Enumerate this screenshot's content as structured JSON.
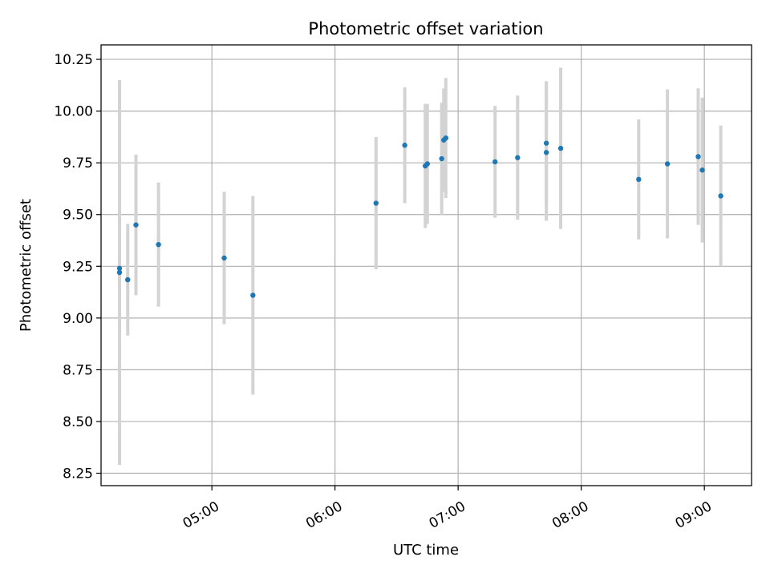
{
  "chart_data": {
    "type": "scatter",
    "title": "Photometric offset variation",
    "xlabel": "UTC time",
    "ylabel": "Photometric offset",
    "x_unit": "UTC time (HH:MM)",
    "xlim": [
      "04:06",
      "09:23"
    ],
    "ylim": [
      8.19,
      10.32
    ],
    "x_ticks": [
      "05:00",
      "06:00",
      "07:00",
      "08:00",
      "09:00"
    ],
    "y_ticks": [
      8.25,
      8.5,
      8.75,
      9.0,
      9.25,
      9.5,
      9.75,
      10.0,
      10.25
    ],
    "y_tick_labels": [
      "8.25",
      "8.50",
      "8.75",
      "9.00",
      "9.25",
      "9.50",
      "9.75",
      "10.00",
      "10.25"
    ],
    "grid": true,
    "colors": {
      "points": "#1f77b4",
      "errorbars": "#d3d3d3",
      "grid": "#b0b0b0"
    },
    "points": [
      {
        "t": "04:15",
        "y": 9.22,
        "err": 0.93
      },
      {
        "t": "04:15",
        "y": 9.24,
        "err": 0.8
      },
      {
        "t": "04:19",
        "y": 9.185,
        "err": 0.27
      },
      {
        "t": "04:23",
        "y": 9.45,
        "err": 0.34
      },
      {
        "t": "04:34",
        "y": 9.355,
        "err": 0.3
      },
      {
        "t": "05:06",
        "y": 9.29,
        "err": 0.32
      },
      {
        "t": "05:20",
        "y": 9.11,
        "err": 0.48
      },
      {
        "t": "06:20",
        "y": 9.555,
        "err": 0.32
      },
      {
        "t": "06:34",
        "y": 9.835,
        "err": 0.28
      },
      {
        "t": "06:44",
        "y": 9.735,
        "err": 0.3
      },
      {
        "t": "06:45",
        "y": 9.745,
        "err": 0.29
      },
      {
        "t": "06:52",
        "y": 9.77,
        "err": 0.27
      },
      {
        "t": "06:53",
        "y": 9.86,
        "err": 0.25
      },
      {
        "t": "06:54",
        "y": 9.87,
        "err": 0.29
      },
      {
        "t": "07:18",
        "y": 9.755,
        "err": 0.27
      },
      {
        "t": "07:29",
        "y": 9.775,
        "err": 0.3
      },
      {
        "t": "07:43",
        "y": 9.845,
        "err": 0.3
      },
      {
        "t": "07:43",
        "y": 9.8,
        "err": 0.33
      },
      {
        "t": "07:50",
        "y": 9.82,
        "err": 0.39
      },
      {
        "t": "08:28",
        "y": 9.67,
        "err": 0.29
      },
      {
        "t": "08:42",
        "y": 9.745,
        "err": 0.36
      },
      {
        "t": "08:57",
        "y": 9.78,
        "err": 0.33
      },
      {
        "t": "08:59",
        "y": 9.715,
        "err": 0.35
      },
      {
        "t": "09:08",
        "y": 9.59,
        "err": 0.34
      }
    ]
  }
}
